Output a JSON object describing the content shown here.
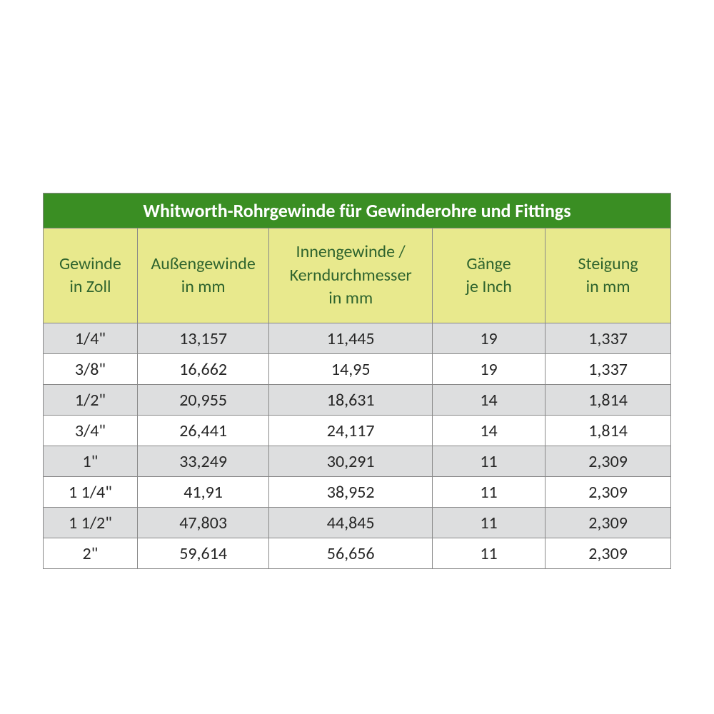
{
  "table": {
    "type": "table",
    "title": "Whitworth-Rohrgewinde für Gewinderohre und Fittings",
    "colors": {
      "title_bg": "#3a8e23",
      "title_text": "#ffffff",
      "header_bg": "#e8e98d",
      "header_text": "#2f642e",
      "row_odd_bg": "#dddedf",
      "row_even_bg": "#ffffff",
      "border": "#888888",
      "cell_text": "#262626"
    },
    "font": {
      "family": "Calibri",
      "title_size_pt": 20,
      "header_size_pt": 18,
      "cell_size_pt": 18
    },
    "column_widths_pct": [
      15,
      21,
      26,
      18,
      20
    ],
    "columns": [
      {
        "line1": "Gewinde",
        "line2": "in Zoll"
      },
      {
        "line1": "Außengewinde",
        "line2": "in mm"
      },
      {
        "line1": "Innengewinde /",
        "line2": "Kerndurchmesser",
        "line3": "in mm"
      },
      {
        "line1": "Gänge",
        "line2": "je Inch"
      },
      {
        "line1": "Steigung",
        "line2": "in mm"
      }
    ],
    "rows": [
      [
        "1/4\"",
        "13,157",
        "11,445",
        "19",
        "1,337"
      ],
      [
        "3/8\"",
        "16,662",
        "14,95",
        "19",
        "1,337"
      ],
      [
        "1/2\"",
        "20,955",
        "18,631",
        "14",
        "1,814"
      ],
      [
        "3/4\"",
        "26,441",
        "24,117",
        "14",
        "1,814"
      ],
      [
        "1\"",
        "33,249",
        "30,291",
        "11",
        "2,309"
      ],
      [
        "1 1/4\"",
        "41,91",
        "38,952",
        "11",
        "2,309"
      ],
      [
        "1 1/2\"",
        "47,803",
        "44,845",
        "11",
        "2,309"
      ],
      [
        "2\"",
        "59,614",
        "56,656",
        "11",
        "2,309"
      ]
    ]
  }
}
